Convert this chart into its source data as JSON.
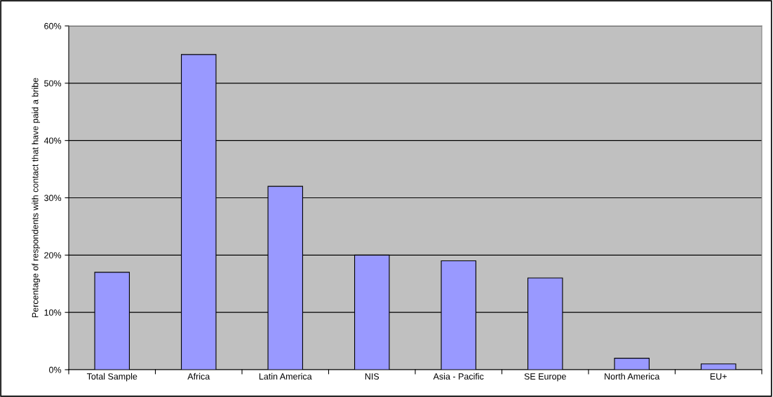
{
  "chart_data": {
    "type": "bar",
    "ylabel": "Percentage of respondents with contact that have paid a bribe",
    "categories": [
      "Total Sample",
      "Africa",
      "Latin America",
      "NIS",
      "Asia - Pacific",
      "SE Europe",
      "North America",
      "EU+"
    ],
    "values": [
      17,
      55,
      32,
      20,
      19,
      16,
      2,
      1
    ],
    "color": "#9999ff",
    "ylim": [
      0,
      60
    ],
    "yticks": [
      {
        "value": 0,
        "label": "0%"
      },
      {
        "value": 10,
        "label": "10%"
      },
      {
        "value": 20,
        "label": "20%"
      },
      {
        "value": 30,
        "label": "30%"
      },
      {
        "value": 40,
        "label": "40%"
      },
      {
        "value": 50,
        "label": "50%"
      },
      {
        "value": 60,
        "label": "60%"
      }
    ],
    "grid": "y"
  }
}
